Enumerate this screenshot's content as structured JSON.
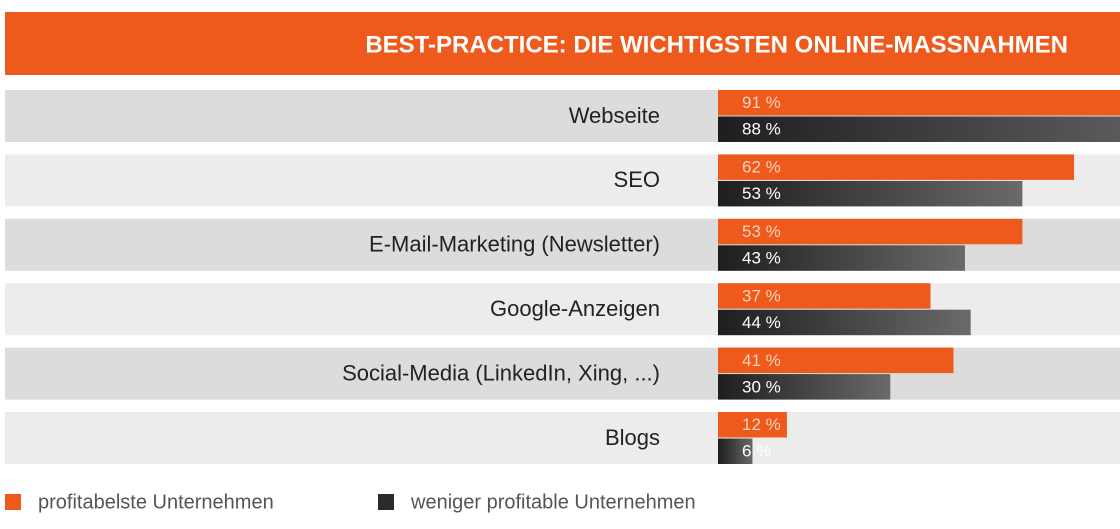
{
  "chart_data": {
    "type": "hbar",
    "title": "BEST-PRACTICE: DIE WICHTIGSTEN ONLINE-MASSNAHMEN",
    "categories": [
      "Webseite",
      "SEO",
      "E-Mail-Marketing (Newsletter)",
      "Google-Anzeigen",
      "Social-Media (LinkedIn, Xing, ...)",
      "Blogs"
    ],
    "series": [
      {
        "name": "profitabelste Unternehmen",
        "color": "#ee5a1c",
        "values": [
          91,
          62,
          53,
          37,
          41,
          12
        ],
        "value_labels": [
          "91 %",
          "62 %",
          "53 %",
          "37 %",
          "41 %",
          "12 %"
        ]
      },
      {
        "name": "weniger profitable Unternehmen",
        "color": "#2a2a2a",
        "values": [
          88,
          53,
          43,
          44,
          30,
          6
        ],
        "value_labels": [
          "88 %",
          "53 %",
          "43 %",
          "44 %",
          "30 %",
          "6 %"
        ]
      }
    ],
    "xlim": [
      0,
      70
    ]
  }
}
